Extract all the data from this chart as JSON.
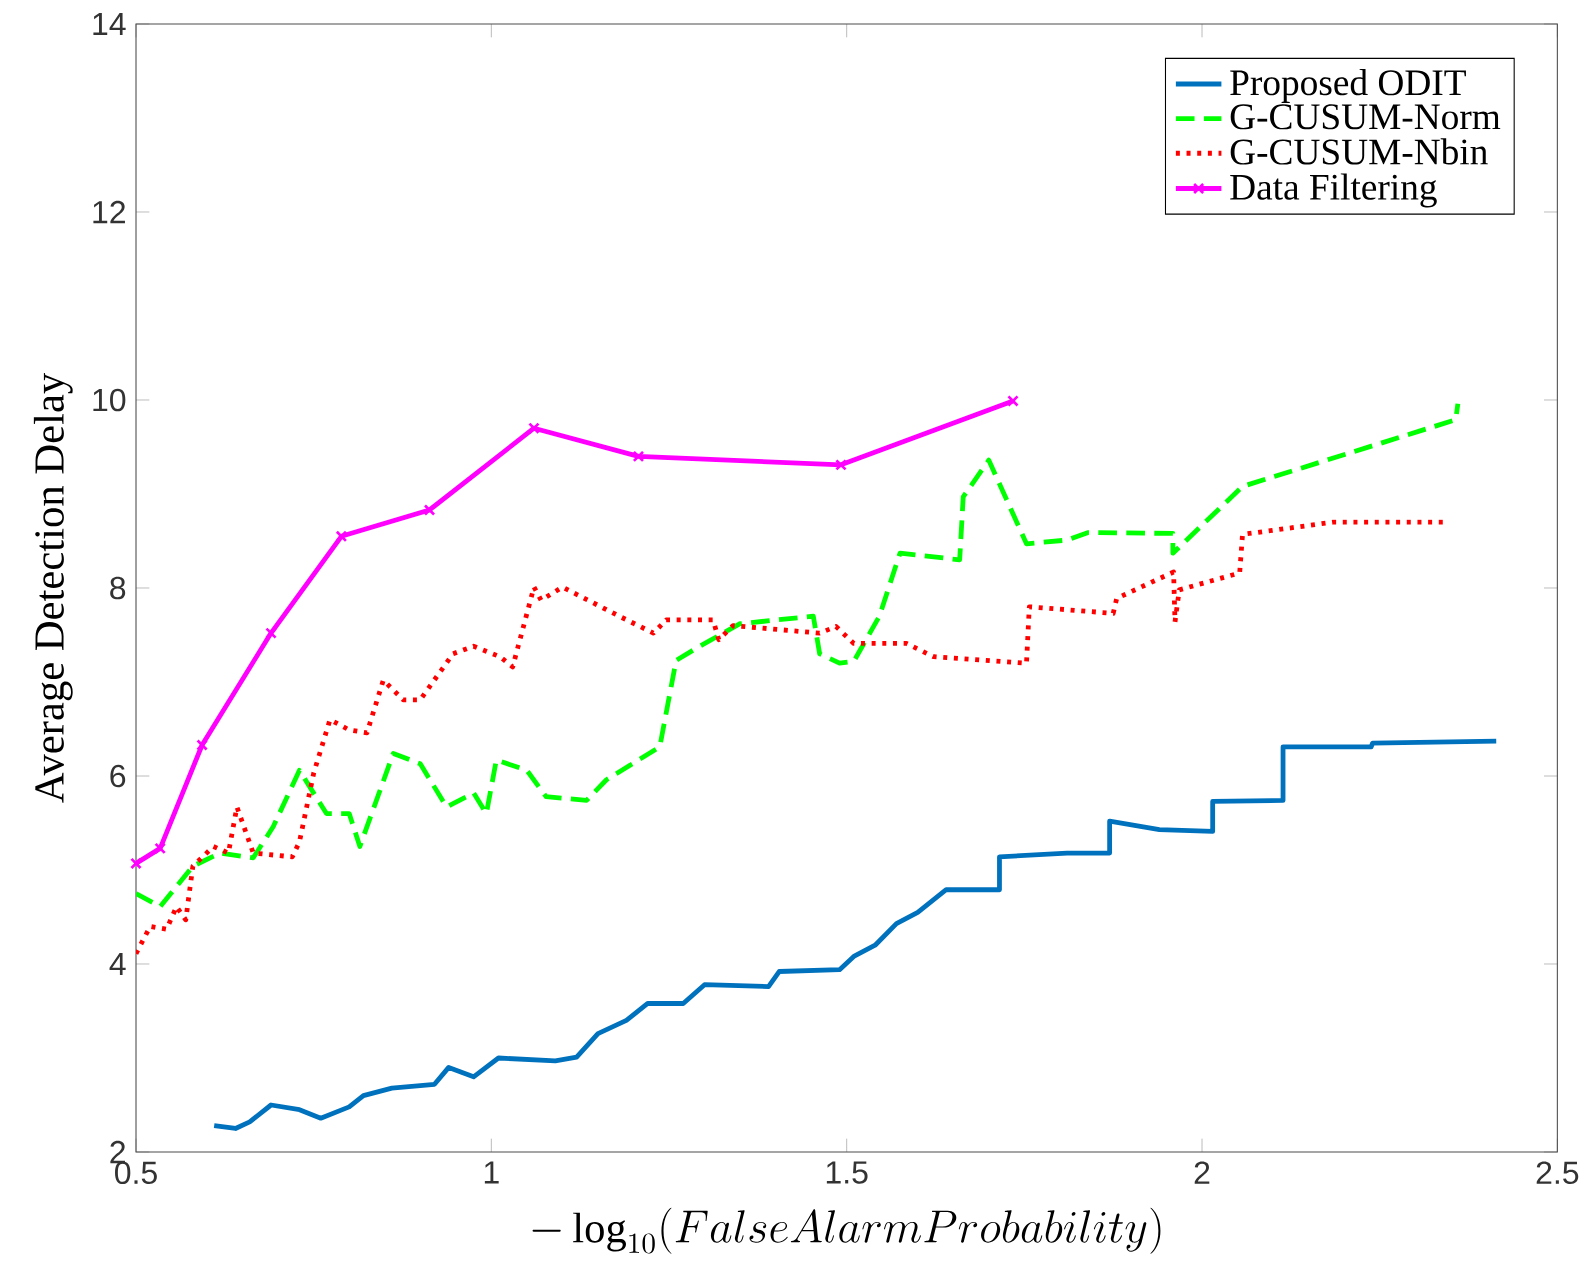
{
  "chart_data": {
    "type": "line",
    "xlabel": "-\\log_{10}(FalseAlarmProbability)",
    "ylabel": "Average Detection Delay",
    "xlim": [
      0.5,
      2.5
    ],
    "ylim": [
      2,
      14
    ],
    "xticks": [
      0.5,
      1,
      1.5,
      2,
      2.5
    ],
    "yticks": [
      2,
      4,
      6,
      8,
      10,
      12,
      14
    ],
    "legend": "top right",
    "series": [
      {
        "name": "Proposed ODIT",
        "color": "#0072bd",
        "line_style": "solid",
        "marker": "none",
        "x": [
          0.61,
          0.64,
          0.66,
          0.69,
          0.73,
          0.76,
          0.8,
          0.82,
          0.86,
          0.92,
          0.94,
          0.975,
          1.01,
          1.09,
          1.12,
          1.15,
          1.19,
          1.22,
          1.27,
          1.3,
          1.39,
          1.405,
          1.49,
          1.51,
          1.54,
          1.57,
          1.6,
          1.64,
          1.715,
          1.715,
          1.81,
          1.87,
          1.87,
          1.94,
          2.015,
          2.015,
          2.114,
          2.114,
          2.238,
          2.24,
          2.414
        ],
        "values": [
          2.28,
          2.25,
          2.32,
          2.5,
          2.45,
          2.36,
          2.48,
          2.6,
          2.68,
          2.72,
          2.9,
          2.8,
          3.0,
          2.97,
          3.01,
          3.26,
          3.4,
          3.58,
          3.58,
          3.78,
          3.76,
          3.92,
          3.94,
          4.08,
          4.2,
          4.43,
          4.55,
          4.79,
          4.79,
          5.14,
          5.18,
          5.18,
          5.52,
          5.43,
          5.41,
          5.73,
          5.74,
          6.31,
          6.31,
          6.35,
          6.37
        ]
      },
      {
        "name": "G-CUSUM-Norm",
        "color": "#00ff00",
        "line_style": "dashed",
        "marker": "none",
        "x": [
          0.5,
          0.534,
          0.58,
          0.618,
          0.665,
          0.693,
          0.73,
          0.768,
          0.8,
          0.815,
          0.862,
          0.9,
          0.937,
          0.975,
          0.993,
          1.007,
          1.05,
          1.077,
          1.134,
          1.162,
          1.237,
          1.26,
          1.293,
          1.35,
          1.453,
          1.462,
          1.49,
          1.51,
          1.546,
          1.575,
          1.659,
          1.664,
          1.7,
          1.753,
          1.81,
          1.84,
          1.959,
          1.959,
          2.057,
          2.357,
          2.36
        ],
        "values": [
          4.75,
          4.61,
          5.04,
          5.18,
          5.13,
          5.46,
          6.06,
          5.6,
          5.6,
          5.25,
          6.24,
          6.13,
          5.67,
          5.82,
          5.6,
          6.17,
          6.06,
          5.78,
          5.74,
          5.96,
          6.31,
          7.23,
          7.38,
          7.62,
          7.7,
          7.3,
          7.2,
          7.22,
          7.7,
          8.37,
          8.3,
          8.97,
          9.36,
          8.47,
          8.51,
          8.59,
          8.58,
          8.37,
          9.08,
          9.79,
          9.96
        ]
      },
      {
        "name": "G-CUSUM-Nbin",
        "color": "#ff0000",
        "line_style": "dotted",
        "marker": "none",
        "x": [
          0.5,
          0.52,
          0.543,
          0.557,
          0.57,
          0.58,
          0.609,
          0.63,
          0.642,
          0.665,
          0.72,
          0.73,
          0.75,
          0.773,
          0.8,
          0.825,
          0.848,
          0.876,
          0.9,
          0.946,
          0.975,
          1.012,
          1.03,
          1.06,
          1.07,
          1.1,
          1.18,
          1.228,
          1.246,
          1.312,
          1.32,
          1.34,
          1.462,
          1.485,
          1.51,
          1.584,
          1.622,
          1.753,
          1.757,
          1.875,
          1.88,
          1.96,
          1.962,
          1.968,
          2.053,
          2.057,
          2.184,
          2.348
        ],
        "values": [
          4.11,
          4.4,
          4.37,
          4.61,
          4.47,
          5.04,
          5.25,
          5.18,
          5.67,
          5.18,
          5.14,
          5.3,
          6.03,
          6.6,
          6.49,
          6.46,
          7.02,
          6.81,
          6.81,
          7.3,
          7.38,
          7.27,
          7.16,
          8.01,
          7.87,
          8.01,
          7.7,
          7.52,
          7.66,
          7.66,
          7.45,
          7.6,
          7.52,
          7.59,
          7.41,
          7.41,
          7.27,
          7.2,
          7.8,
          7.73,
          7.89,
          8.17,
          7.64,
          7.98,
          8.16,
          8.57,
          8.7,
          8.7
        ]
      },
      {
        "name": "Data Filtering",
        "color": "#ff00ff",
        "line_style": "solid",
        "marker": "cross",
        "x": [
          0.5,
          0.534,
          0.593,
          0.69,
          0.789,
          0.913,
          1.06,
          1.207,
          1.492,
          1.734
        ],
        "values": [
          5.07,
          5.23,
          6.33,
          7.52,
          8.55,
          8.83,
          9.7,
          9.4,
          9.31,
          9.99
        ]
      }
    ]
  }
}
